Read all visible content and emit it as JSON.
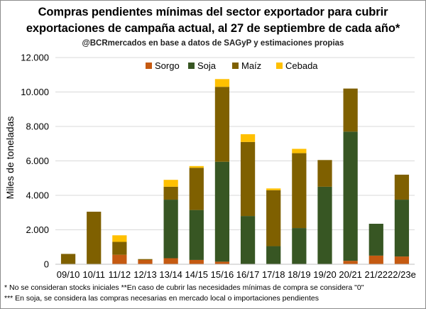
{
  "chart_data": {
    "type": "bar",
    "stacked": true,
    "title": "Compras pendientes mínimas del sector exportador para cubrir exportaciones de campaña actual, al 27 de septiembre de cada año*",
    "title_line1": "Compras pendientes mínimas del sector exportador para cubrir",
    "title_line2": "exportaciones de campaña actual, al 27 de septiembre de cada año*",
    "subtitle": "@BCRmercados en base a datos de SAGyP y estimaciones propias",
    "xlabel": "",
    "ylabel": "Miles de toneladas",
    "ylim": [
      0,
      12000
    ],
    "yticks": [
      0,
      2000,
      4000,
      6000,
      8000,
      10000,
      12000
    ],
    "ytick_labels": [
      "0",
      "2.000",
      "4.000",
      "6.000",
      "8.000",
      "10.000",
      "12.000"
    ],
    "grid": true,
    "legend_position": "top",
    "categories": [
      "09/10",
      "10/11",
      "11/12",
      "12/13",
      "13/14",
      "14/15",
      "15/16",
      "16/17",
      "17/18",
      "18/19",
      "19/20",
      "20/21",
      "21/22",
      "22/23e"
    ],
    "series": [
      {
        "name": "Sorgo",
        "color": "#c55a11",
        "values": [
          0,
          0,
          550,
          250,
          350,
          250,
          150,
          0,
          0,
          0,
          0,
          200,
          500,
          450
        ]
      },
      {
        "name": "Soja",
        "color": "#375623",
        "values": [
          0,
          0,
          0,
          0,
          3400,
          2900,
          5800,
          2800,
          1050,
          2100,
          4500,
          7500,
          1850,
          3300
        ]
      },
      {
        "name": "Maíz",
        "color": "#7f6000",
        "values": [
          600,
          3050,
          750,
          50,
          750,
          2450,
          4350,
          4300,
          3250,
          4350,
          1550,
          2500,
          0,
          1450
        ]
      },
      {
        "name": "Cebada",
        "color": "#ffc000",
        "values": [
          0,
          0,
          380,
          0,
          400,
          100,
          450,
          450,
          100,
          250,
          0,
          0,
          0,
          0
        ]
      }
    ]
  },
  "footnotes": {
    "line1": "* No se consideran stocks iniciales **En caso de cubrir las necesidades mínimas de compra se considera \"0\"",
    "line2": "*** En soja, se considera las compras necesarias en mercado local o importaciones pendientes"
  }
}
